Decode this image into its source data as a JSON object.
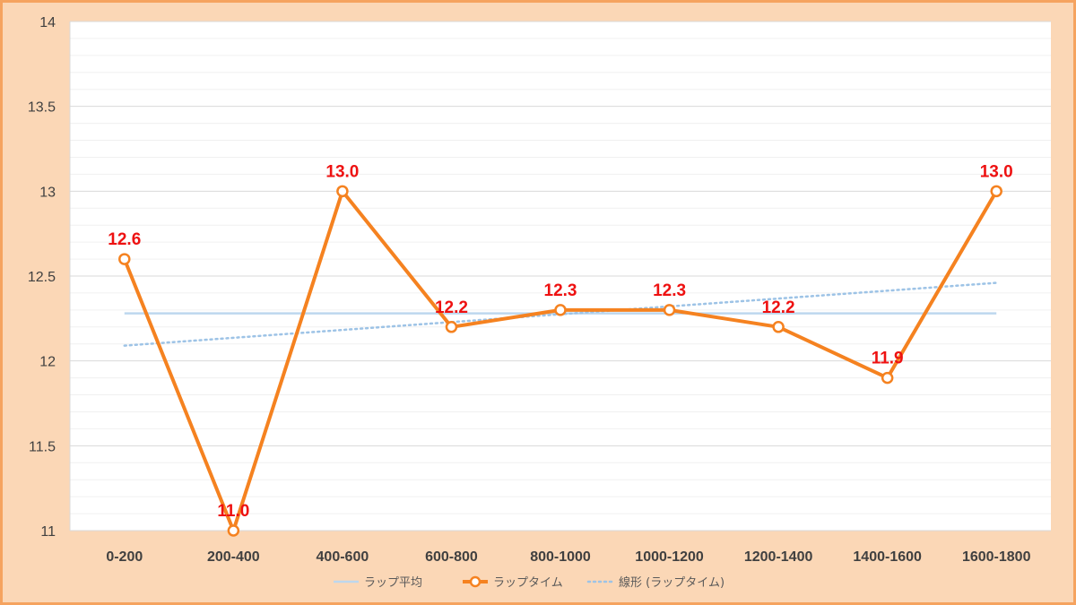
{
  "chart_data": {
    "type": "line",
    "categories": [
      "0-200",
      "200-400",
      "400-600",
      "600-800",
      "800-1000",
      "1000-1200",
      "1200-1400",
      "1400-1600",
      "1600-1800"
    ],
    "ylim": [
      11,
      14
    ],
    "yticks": [
      "11",
      "11.5",
      "12",
      "12.5",
      "13",
      "13.5",
      "14"
    ],
    "y_major_step": 0.5,
    "y_minor_step": 0.1,
    "grid": true,
    "legend_position": "bottom",
    "series": [
      {
        "name": "ラップ平均",
        "kind": "constant-line",
        "values": [
          12.28,
          12.28,
          12.28,
          12.28,
          12.28,
          12.28,
          12.28,
          12.28,
          12.28
        ],
        "color": "#bdd7ee"
      },
      {
        "name": "ラップタイム",
        "kind": "line-markers",
        "values": [
          12.6,
          11.0,
          13.0,
          12.2,
          12.3,
          12.3,
          12.2,
          11.9,
          13.0
        ],
        "data_labels": [
          "12.6",
          "11.0",
          "13.0",
          "12.2",
          "12.3",
          "12.3",
          "12.2",
          "11.9",
          "13.0"
        ],
        "color": "#f58220",
        "label_color": "#ee1111"
      },
      {
        "name": "線形 (ラップタイム)",
        "kind": "trendline",
        "values": [
          12.09,
          12.136,
          12.182,
          12.229,
          12.276,
          12.322,
          12.368,
          12.414,
          12.46
        ],
        "color": "#9dc3e6"
      }
    ]
  }
}
